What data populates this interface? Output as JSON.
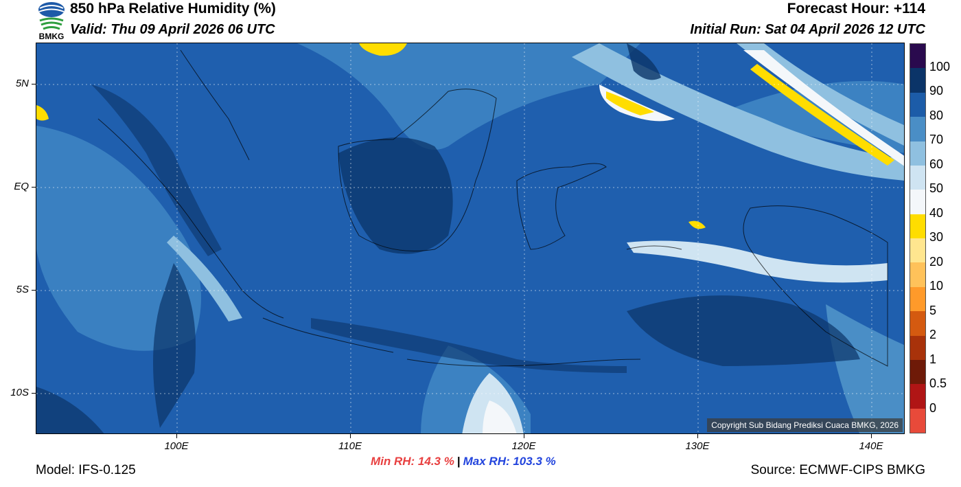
{
  "header": {
    "logo_text": "BMKG",
    "title": "850 hPa Relative Humidity (%)",
    "valid": "Valid: Thu 09 April 2026 06 UTC",
    "forecast_hour": "Forecast Hour: +114",
    "initial_run": "Initial Run: Sat 04 April 2026 12 UTC"
  },
  "map": {
    "region": "Indonesia",
    "lat_labels": [
      "5N",
      "EQ",
      "5S",
      "10S"
    ],
    "lon_labels": [
      "100E",
      "110E",
      "120E",
      "130E",
      "140E"
    ],
    "copyright": "Copyright Sub Bidang Prediksi Cuaca BMKG, 2026",
    "background_color": "#1f5fae"
  },
  "colorbar": {
    "labels": [
      "100",
      "90",
      "80",
      "70",
      "60",
      "50",
      "40",
      "30",
      "20",
      "10",
      "5",
      "2",
      "1",
      "0.5",
      "0"
    ],
    "colors": [
      "#2a0a4e",
      "#0b3468",
      "#1c5ca8",
      "#4a8ec6",
      "#8fc0e0",
      "#cfe4f2",
      "#f4f7fa",
      "#ffdd00",
      "#ffe68f",
      "#ffc25a",
      "#ff9a2a",
      "#d45a10",
      "#a8320a",
      "#6e1a08",
      "#b01515",
      "#e84a3a"
    ]
  },
  "footer": {
    "min_rh": "Min RH:  14.3 %",
    "separator": "|",
    "max_rh": "Max RH: 103.3 %",
    "model": "Model: IFS-0.125",
    "source": "Source: ECMWF-CIPS BMKG"
  }
}
